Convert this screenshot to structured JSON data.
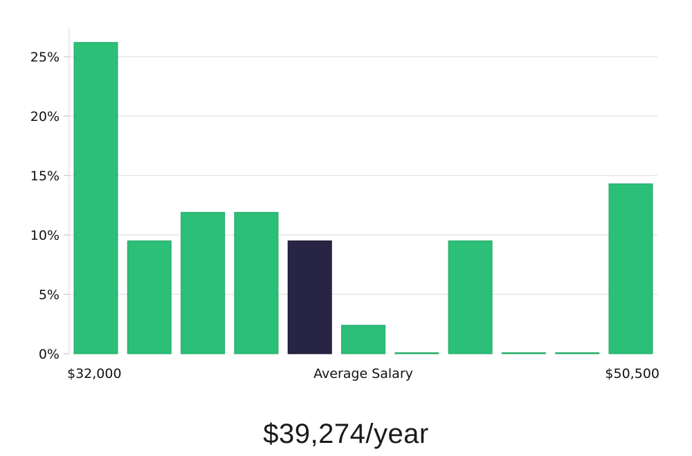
{
  "chart_data": {
    "type": "bar",
    "ylabel": "",
    "xlabel": "Average Salary",
    "x_start_label": "$32,000",
    "x_end_label": "$50,500",
    "y_ticks": [
      "0%",
      "5%",
      "10%",
      "15%",
      "20%",
      "25%"
    ],
    "ylim": [
      0,
      27.5
    ],
    "grid": true,
    "values": [
      26.2,
      9.5,
      11.9,
      11.9,
      9.5,
      2.4,
      0,
      9.5,
      0,
      0,
      14.3
    ],
    "highlight_index": 4,
    "colors": {
      "bar": "#2bbf78",
      "bar_edge": "#22a866",
      "highlight": "#282443",
      "highlight_edge": "#1a1730"
    }
  },
  "summary": {
    "salary_text": "$39,274/year"
  }
}
